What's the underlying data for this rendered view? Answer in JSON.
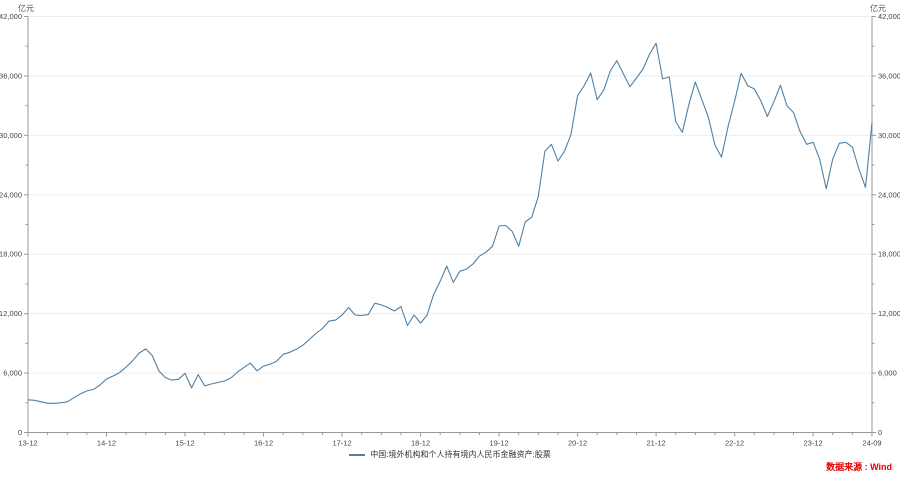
{
  "units": {
    "left": "亿元",
    "right": "亿元"
  },
  "source": {
    "label": "数据来源 : Wind"
  },
  "colors": {
    "line": "#4f81a6",
    "grid": "#ededed",
    "axis": "#999999",
    "tick_text": "#444444",
    "source_text": "#e60000"
  },
  "chart_data": {
    "type": "line",
    "title": "",
    "ylabel": "亿元",
    "ylim": [
      0,
      42000
    ],
    "y_major_step": 6000,
    "y_minor_step": 3000,
    "grid": "horizontal-only",
    "legend_position": "bottom-center",
    "x_tick_labels": [
      "13-12",
      "14-12",
      "15-12",
      "16-12",
      "17-12",
      "18-12",
      "19-12",
      "20-12",
      "21-12",
      "22-12",
      "23-12",
      "24-09"
    ],
    "y_tick_labels": [
      "0",
      "6,000",
      "12,000",
      "18,000",
      "24,000",
      "30,000",
      "36,000",
      "42,000"
    ],
    "series": [
      {
        "name": "中国:境外机构和个人持有境内人民币金融资产:股票",
        "color": "#4f81a6",
        "x": [
          "2013-12",
          "2014-01",
          "2014-02",
          "2014-03",
          "2014-04",
          "2014-05",
          "2014-06",
          "2014-07",
          "2014-08",
          "2014-09",
          "2014-10",
          "2014-11",
          "2014-12",
          "2015-01",
          "2015-02",
          "2015-03",
          "2015-04",
          "2015-05",
          "2015-06",
          "2015-07",
          "2015-08",
          "2015-09",
          "2015-10",
          "2015-11",
          "2015-12",
          "2016-01",
          "2016-02",
          "2016-03",
          "2016-04",
          "2016-05",
          "2016-06",
          "2016-07",
          "2016-08",
          "2016-09",
          "2016-10",
          "2016-11",
          "2016-12",
          "2017-01",
          "2017-02",
          "2017-03",
          "2017-04",
          "2017-05",
          "2017-06",
          "2017-07",
          "2017-08",
          "2017-09",
          "2017-10",
          "2017-11",
          "2017-12",
          "2018-01",
          "2018-02",
          "2018-03",
          "2018-04",
          "2018-05",
          "2018-06",
          "2018-07",
          "2018-08",
          "2018-09",
          "2018-10",
          "2018-11",
          "2018-12",
          "2019-01",
          "2019-02",
          "2019-03",
          "2019-04",
          "2019-05",
          "2019-06",
          "2019-07",
          "2019-08",
          "2019-09",
          "2019-10",
          "2019-11",
          "2019-12",
          "2020-01",
          "2020-02",
          "2020-03",
          "2020-04",
          "2020-05",
          "2020-06",
          "2020-07",
          "2020-08",
          "2020-09",
          "2020-10",
          "2020-11",
          "2020-12",
          "2021-01",
          "2021-02",
          "2021-03",
          "2021-04",
          "2021-05",
          "2021-06",
          "2021-07",
          "2021-08",
          "2021-09",
          "2021-10",
          "2021-11",
          "2021-12",
          "2022-01",
          "2022-02",
          "2022-03",
          "2022-04",
          "2022-05",
          "2022-06",
          "2022-07",
          "2022-08",
          "2022-09",
          "2022-10",
          "2022-11",
          "2022-12",
          "2023-01",
          "2023-02",
          "2023-03",
          "2023-04",
          "2023-05",
          "2023-06",
          "2023-07",
          "2023-08",
          "2023-09",
          "2023-10",
          "2023-11",
          "2023-12",
          "2024-01",
          "2024-02",
          "2024-03",
          "2024-04",
          "2024-05",
          "2024-06",
          "2024-07",
          "2024-08",
          "2024-09"
        ],
        "values": [
          3300,
          3250,
          3100,
          2950,
          2950,
          3000,
          3100,
          3500,
          3900,
          4200,
          4350,
          4800,
          5400,
          5700,
          6050,
          6600,
          7250,
          8030,
          8440,
          7760,
          6220,
          5540,
          5290,
          5370,
          5980,
          4500,
          5850,
          4700,
          4900,
          5050,
          5200,
          5500,
          6100,
          6570,
          7010,
          6220,
          6700,
          6900,
          7200,
          7900,
          8100,
          8400,
          8800,
          9400,
          10000,
          10500,
          11250,
          11350,
          11850,
          12620,
          11860,
          11800,
          11900,
          13050,
          12880,
          12620,
          12270,
          12720,
          10800,
          11860,
          11050,
          11860,
          13920,
          15290,
          16800,
          15150,
          16270,
          16500,
          17000,
          17800,
          18200,
          18800,
          20850,
          20900,
          20300,
          18800,
          21250,
          21750,
          23850,
          28400,
          29100,
          27400,
          28400,
          30100,
          34000,
          35000,
          36300,
          33600,
          34600,
          36500,
          37550,
          36200,
          34900,
          35800,
          36700,
          38200,
          39300,
          35700,
          35900,
          31400,
          30300,
          33100,
          35400,
          33600,
          31800,
          29000,
          27800,
          30900,
          33450,
          36270,
          35000,
          34700,
          33500,
          31900,
          33400,
          35050,
          33000,
          32300,
          30400,
          29100,
          29300,
          27600,
          24600,
          27600,
          29200,
          29300,
          28800,
          26600,
          24750,
          31300
        ]
      }
    ]
  }
}
